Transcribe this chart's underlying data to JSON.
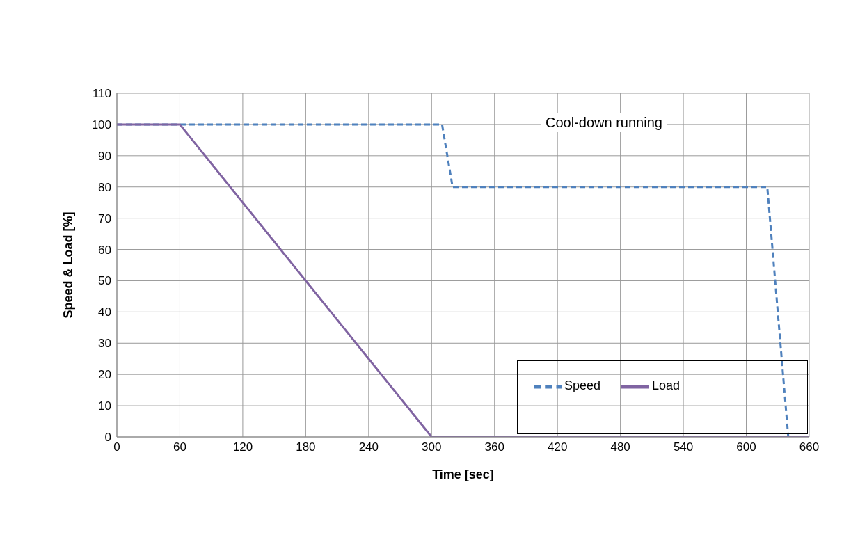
{
  "chart_data": {
    "type": "line",
    "xlabel": "Time [sec]",
    "ylabel": "Speed & Load [%]",
    "xlim": [
      0,
      660
    ],
    "xticks": [
      0,
      60,
      120,
      180,
      240,
      300,
      360,
      420,
      480,
      540,
      600,
      660
    ],
    "ylim": [
      0,
      110
    ],
    "yticks": [
      0,
      10,
      20,
      30,
      40,
      50,
      60,
      70,
      80,
      90,
      100,
      110
    ],
    "grid": true,
    "legend": "bottom right",
    "marker": "none",
    "annotations": [
      "Cool-down running"
    ],
    "series": [
      {
        "name": "Speed",
        "color": "#4f81bd",
        "line_style": "dashed",
        "x": [
          0,
          310,
          320,
          620,
          640,
          660
        ],
        "values": [
          100,
          100,
          80,
          80,
          0,
          0
        ]
      },
      {
        "name": "Load",
        "color": "#8064a2",
        "line_style": "solid",
        "x": [
          0,
          60,
          300,
          660
        ],
        "values": [
          100,
          100,
          0,
          0
        ]
      }
    ]
  }
}
